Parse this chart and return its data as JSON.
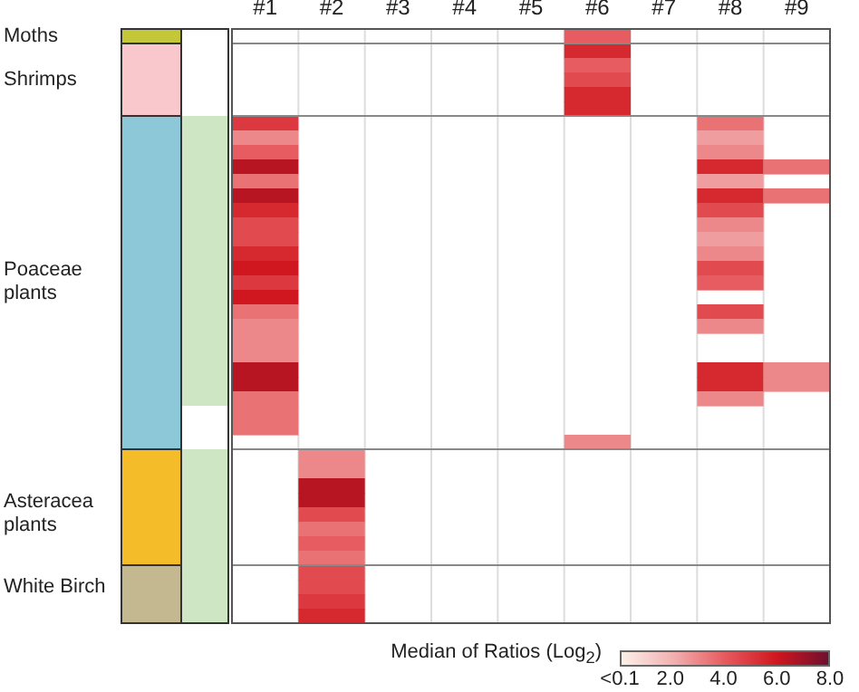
{
  "chart_data": {
    "type": "heatmap",
    "categories": [
      "#1",
      "#2",
      "#3",
      "#4",
      "#5",
      "#6",
      "#7",
      "#8",
      "#9"
    ],
    "y_categories": [
      "Moths",
      null,
      null,
      "Shrimps",
      null,
      null,
      null,
      null,
      null,
      null,
      null,
      null,
      null,
      null,
      null,
      null,
      null,
      "Poaceae plants",
      null,
      null,
      null,
      null,
      null,
      null,
      null,
      null,
      null,
      null,
      null,
      null,
      null,
      null,
      null,
      "Asteracea plants",
      null,
      null,
      null,
      null,
      "White Birch",
      null,
      null
    ],
    "cells": [
      [
        null,
        null,
        null,
        null,
        null,
        4,
        null,
        null,
        null
      ],
      [
        null,
        null,
        null,
        null,
        null,
        5.5,
        null,
        null,
        null
      ],
      [
        null,
        null,
        null,
        null,
        null,
        4,
        null,
        null,
        null
      ],
      [
        null,
        null,
        null,
        null,
        null,
        4.5,
        null,
        null,
        null
      ],
      [
        null,
        null,
        null,
        null,
        null,
        5.5,
        null,
        null,
        null
      ],
      [
        null,
        null,
        null,
        null,
        null,
        5.5,
        null,
        null,
        null
      ],
      [
        5,
        null,
        null,
        null,
        null,
        null,
        null,
        3.5,
        null
      ],
      [
        3,
        null,
        null,
        null,
        null,
        null,
        null,
        2.5,
        null
      ],
      [
        4,
        null,
        null,
        null,
        null,
        null,
        null,
        3,
        null
      ],
      [
        6.5,
        null,
        null,
        null,
        null,
        null,
        null,
        5.5,
        3.5
      ],
      [
        3.5,
        null,
        null,
        null,
        null,
        null,
        null,
        2.5,
        null
      ],
      [
        6.5,
        null,
        null,
        null,
        null,
        null,
        null,
        5.5,
        3.5
      ],
      [
        5.5,
        null,
        null,
        null,
        null,
        null,
        null,
        4.5,
        null
      ],
      [
        4.5,
        null,
        null,
        null,
        null,
        null,
        null,
        3,
        null
      ],
      [
        4.5,
        null,
        null,
        null,
        null,
        null,
        null,
        2.5,
        null
      ],
      [
        5.5,
        null,
        null,
        null,
        null,
        null,
        null,
        3,
        null
      ],
      [
        6,
        null,
        null,
        null,
        null,
        null,
        null,
        4.5,
        null
      ],
      [
        5,
        null,
        null,
        null,
        null,
        null,
        null,
        4,
        null
      ],
      [
        6,
        null,
        null,
        null,
        null,
        null,
        null,
        null,
        null
      ],
      [
        3.5,
        null,
        null,
        null,
        null,
        null,
        null,
        4.5,
        null
      ],
      [
        3,
        null,
        null,
        null,
        null,
        null,
        null,
        3,
        null
      ],
      [
        3,
        null,
        null,
        null,
        null,
        null,
        null,
        null,
        null
      ],
      [
        3,
        null,
        null,
        null,
        null,
        null,
        null,
        null,
        null
      ],
      [
        6.5,
        null,
        null,
        null,
        null,
        null,
        null,
        5.5,
        3
      ],
      [
        6.5,
        null,
        null,
        null,
        null,
        null,
        null,
        5.5,
        3
      ],
      [
        3.5,
        null,
        null,
        null,
        null,
        null,
        null,
        3,
        null
      ],
      [
        3.5,
        null,
        null,
        null,
        null,
        null,
        null,
        null,
        null
      ],
      [
        3.5,
        null,
        null,
        null,
        null,
        null,
        null,
        null,
        null
      ],
      [
        null,
        null,
        null,
        null,
        null,
        3,
        null,
        null,
        null
      ],
      [
        null,
        3,
        null,
        null,
        null,
        null,
        null,
        null,
        null
      ],
      [
        null,
        3,
        null,
        null,
        null,
        null,
        null,
        null,
        null
      ],
      [
        null,
        6.5,
        null,
        null,
        null,
        null,
        null,
        null,
        null
      ],
      [
        null,
        6.5,
        null,
        null,
        null,
        null,
        null,
        null,
        null
      ],
      [
        null,
        4.5,
        null,
        null,
        null,
        null,
        null,
        null,
        null
      ],
      [
        null,
        3.5,
        null,
        null,
        null,
        null,
        null,
        null,
        null
      ],
      [
        null,
        4,
        null,
        null,
        null,
        null,
        null,
        null,
        null
      ],
      [
        null,
        3.5,
        null,
        null,
        null,
        null,
        null,
        null,
        null
      ],
      [
        null,
        4.5,
        null,
        null,
        null,
        null,
        null,
        null,
        null
      ],
      [
        null,
        4.5,
        null,
        null,
        null,
        null,
        null,
        null,
        null
      ],
      [
        null,
        5,
        null,
        null,
        null,
        null,
        null,
        null,
        null
      ],
      [
        null,
        5.5,
        null,
        null,
        null,
        null,
        null,
        null,
        null
      ]
    ],
    "clabel": "Median of Ratios (Log$_{2}$)",
    "clim": [
      0.1,
      8
    ],
    "cticks": [
      {
        "value": 0.1,
        "label": "<0.1"
      },
      {
        "value": 2,
        "label": "2.0"
      },
      {
        "value": 4,
        "label": "4.0"
      },
      {
        "value": 6,
        "label": "6.0"
      },
      {
        "value": 8,
        "label": "8.0"
      }
    ]
  }
}
